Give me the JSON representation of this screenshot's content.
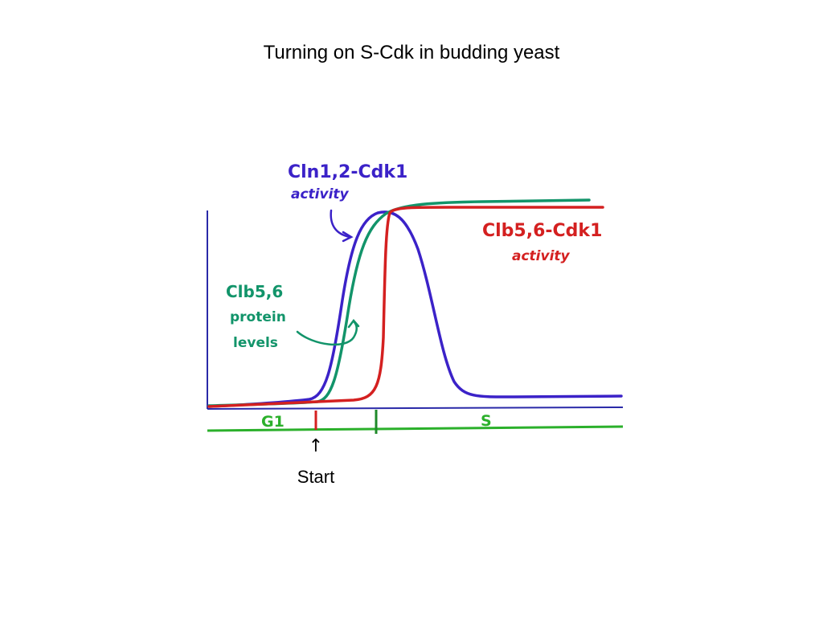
{
  "slide": {
    "title": "Turning on S-Cdk in budding yeast"
  },
  "diagram": {
    "labels": {
      "cln_title": "Cln1,2-Cdk1",
      "cln_sub": "activity",
      "clb_protein_line1": "Clb5,6",
      "clb_protein_line2": "protein",
      "clb_protein_line3": "levels",
      "clb_activity_title": "Clb5,6-Cdk1",
      "clb_activity_sub": "activity",
      "phase_g1": "G1",
      "phase_s": "S",
      "start_label": "Start",
      "start_arrow": "↑"
    },
    "colors": {
      "cln_curve": "#3b22c8",
      "clb_protein_curve": "#12946a",
      "clb_activity_curve": "#d42020",
      "axes": "#2a2aa8",
      "phase_line": "#2bb02b",
      "start_tick": "#d42020",
      "s_tick": "#1f8a2a"
    }
  }
}
